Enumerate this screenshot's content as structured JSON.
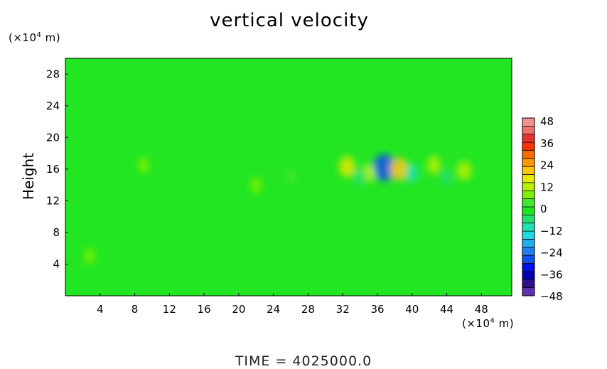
{
  "title": "vertical velocity",
  "y_unit": {
    "prefix": "(×10",
    "exp": "4",
    "suffix": " m)"
  },
  "x_unit": {
    "prefix": "(×10",
    "exp": "4",
    "suffix": " m)"
  },
  "ylabel": "Height",
  "footer": "TIME  =  4025000.0",
  "colors": {
    "background_field": "#22e622"
  },
  "chart_data": {
    "type": "heatmap",
    "title": "vertical velocity",
    "xlabel": "",
    "ylabel": "Height",
    "x_unit_label": "(×10⁴ m)",
    "y_unit_label": "(×10⁴ m)",
    "xlim": [
      0,
      51.5
    ],
    "ylim": [
      0,
      30
    ],
    "x_ticks": [
      4,
      8,
      12,
      16,
      20,
      24,
      28,
      32,
      36,
      40,
      44,
      48
    ],
    "y_ticks": [
      4,
      8,
      12,
      16,
      20,
      24,
      28
    ],
    "colorbar": {
      "range": [
        -48,
        48
      ],
      "tick_labels": [
        48,
        36,
        24,
        12,
        0,
        -12,
        -24,
        -36,
        -48
      ],
      "colors": [
        "#f09090",
        "#f07070",
        "#e83030",
        "#ff3000",
        "#ff6a00",
        "#ff9800",
        "#ffc800",
        "#e8e800",
        "#b8f000",
        "#7cf000",
        "#40e830",
        "#1ee61e",
        "#20e070",
        "#20e0b0",
        "#20d8e0",
        "#20b0f0",
        "#2080f0",
        "#1050f0",
        "#0010e8",
        "#0000b0",
        "#30108a",
        "#6030b0"
      ]
    },
    "features": [
      {
        "x": 36.8,
        "y": 16.2,
        "value": -30
      },
      {
        "x": 38.5,
        "y": 16.0,
        "value": 20
      },
      {
        "x": 32.5,
        "y": 16.3,
        "value": 15
      },
      {
        "x": 40.0,
        "y": 15.5,
        "value": -10
      },
      {
        "x": 35.0,
        "y": 15.5,
        "value": 10
      },
      {
        "x": 34.0,
        "y": 15.0,
        "value": -8
      },
      {
        "x": 42.5,
        "y": 16.5,
        "value": 10
      },
      {
        "x": 46.0,
        "y": 15.8,
        "value": 12
      },
      {
        "x": 44.0,
        "y": 15.0,
        "value": -6
      },
      {
        "x": 22.0,
        "y": 14.0,
        "value": 6
      },
      {
        "x": 18.2,
        "y": 4.0,
        "value": -4
      },
      {
        "x": 2.8,
        "y": 5.0,
        "value": 5
      },
      {
        "x": 9.0,
        "y": 16.5,
        "value": 5
      },
      {
        "x": 26.0,
        "y": 15.0,
        "value": 4
      }
    ]
  }
}
